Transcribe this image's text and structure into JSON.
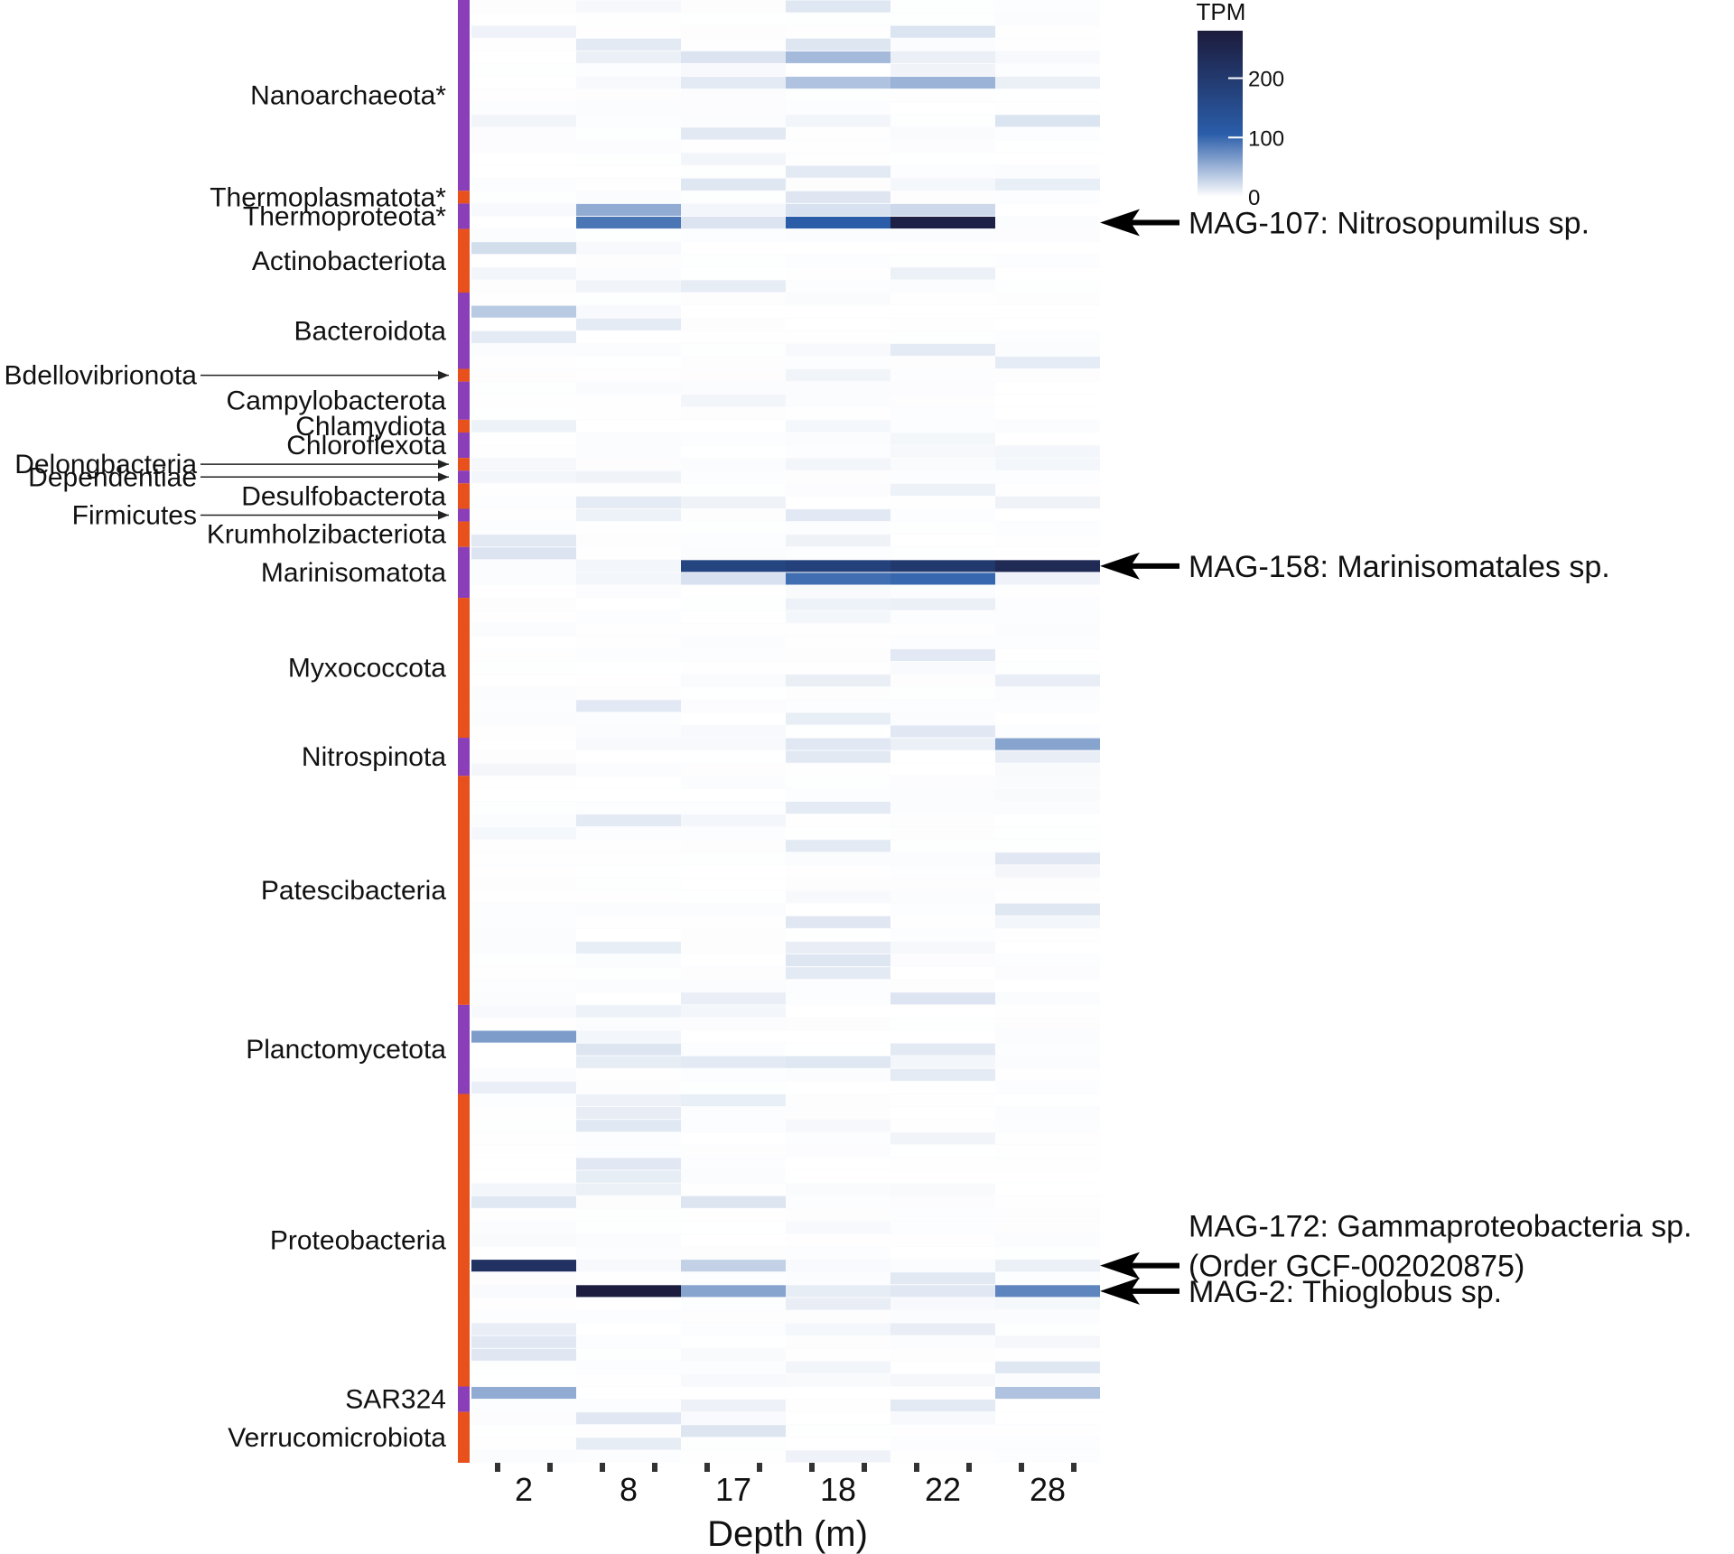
{
  "chart_data": {
    "type": "heatmap",
    "xlabel": "Depth (m)",
    "categories": [
      "2",
      "8",
      "17",
      "18",
      "22",
      "28"
    ],
    "legend": {
      "title": "TPM",
      "ticks": [
        0,
        100,
        200
      ],
      "range": [
        0,
        280
      ],
      "colors": [
        "#ffffff",
        "#2a5da9",
        "#1c1b3c"
      ]
    },
    "phyla": [
      {
        "name": "Nanoarchaeota*",
        "domain": "archaea",
        "rows": 15,
        "pointer": false
      },
      {
        "name": "Thermoplasmatota*",
        "domain": "bacteria",
        "rows": 1,
        "pointer": false
      },
      {
        "name": "Thermoproteota*",
        "domain": "archaea",
        "rows": 2,
        "pointer": false
      },
      {
        "name": "Actinobacteriota",
        "domain": "bacteria",
        "rows": 5,
        "pointer": false
      },
      {
        "name": "Bacteroidota",
        "domain": "archaea",
        "rows": 6,
        "pointer": false
      },
      {
        "name": "Bdellovibrionota",
        "domain": "bacteria",
        "rows": 1,
        "pointer": true
      },
      {
        "name": "Campylobacterota",
        "domain": "archaea",
        "rows": 3,
        "pointer": false
      },
      {
        "name": "Chlamydiota",
        "domain": "bacteria",
        "rows": 1,
        "pointer": false
      },
      {
        "name": "Chloroflexota",
        "domain": "archaea",
        "rows": 2,
        "pointer": false
      },
      {
        "name": "Delongbacteria",
        "domain": "bacteria",
        "rows": 1,
        "pointer": true
      },
      {
        "name": "Dependentiae",
        "domain": "archaea",
        "rows": 1,
        "pointer": true
      },
      {
        "name": "Desulfobacterota",
        "domain": "bacteria",
        "rows": 2,
        "pointer": false
      },
      {
        "name": "Firmicutes",
        "domain": "archaea",
        "rows": 1,
        "pointer": true
      },
      {
        "name": "Krumholzibacteriota",
        "domain": "bacteria",
        "rows": 2,
        "pointer": false
      },
      {
        "name": "Marinisomatota",
        "domain": "archaea",
        "rows": 4,
        "pointer": false
      },
      {
        "name": "Myxococcota",
        "domain": "bacteria",
        "rows": 11,
        "pointer": false
      },
      {
        "name": "Nitrospinota",
        "domain": "archaea",
        "rows": 3,
        "pointer": false
      },
      {
        "name": "Patescibacteria",
        "domain": "bacteria",
        "rows": 18,
        "pointer": false
      },
      {
        "name": "Planctomycetota",
        "domain": "archaea",
        "rows": 7,
        "pointer": false
      },
      {
        "name": "Proteobacteria",
        "domain": "bacteria",
        "rows": 23,
        "pointer": false
      },
      {
        "name": "SAR324",
        "domain": "archaea",
        "rows": 2,
        "pointer": false
      },
      {
        "name": "Verrucomicrobiota",
        "domain": "bacteria",
        "rows": 4,
        "pointer": false
      }
    ],
    "mags": [
      {
        "label": "MAG-107: Nitrosopumilus sp.",
        "phylum": "Thermoproteota*",
        "values": [
          0,
          90,
          18,
          110,
          265,
          2
        ]
      },
      {
        "label": "MAG-158: Marinisomatales sp.",
        "phylum": "Marinisomatota",
        "values": [
          2,
          6,
          170,
          180,
          200,
          240
        ]
      },
      {
        "label": "MAG-172: Gammaproteobacteria sp.",
        "sublabel": "(Order GCF-002020875)",
        "phylum": "Proteobacteria",
        "values": [
          220,
          4,
          30,
          3,
          2,
          10
        ]
      },
      {
        "label": "MAG-2: Thioglobus sp.",
        "phylum": "Proteobacteria",
        "values": [
          3,
          275,
          60,
          12,
          15,
          80
        ]
      }
    ],
    "highlighted_rows": [
      {
        "phylum": "Nanoarchaeota*",
        "values": [
          0,
          10,
          18,
          45,
          10,
          4
        ]
      },
      {
        "phylum": "Nanoarchaeota*",
        "values": [
          0,
          4,
          14,
          40,
          50,
          10
        ]
      },
      {
        "phylum": "Thermoproteota*",
        "values": [
          4,
          55,
          6,
          20,
          25,
          0
        ]
      },
      {
        "phylum": "Actinobacteriota",
        "values": [
          22,
          4,
          0,
          0,
          0,
          0
        ]
      },
      {
        "phylum": "Bacteroidota",
        "values": [
          35,
          4,
          0,
          0,
          0,
          0
        ]
      },
      {
        "phylum": "Marinisomatota",
        "values": [
          2,
          6,
          20,
          95,
          100,
          8
        ]
      },
      {
        "phylum": "Nitrospinota",
        "values": [
          0,
          4,
          4,
          15,
          10,
          60
        ]
      },
      {
        "phylum": "Planctomycetota",
        "values": [
          65,
          6,
          0,
          0,
          0,
          2
        ]
      },
      {
        "phylum": "Planctomycetota",
        "values": [
          0,
          12,
          14,
          16,
          6,
          2
        ]
      },
      {
        "phylum": "Proteobacteria",
        "values": [
          0,
          12,
          2,
          0,
          0,
          0
        ]
      },
      {
        "phylum": "SAR324",
        "values": [
          55,
          0,
          0,
          0,
          0,
          40
        ]
      }
    ]
  }
}
